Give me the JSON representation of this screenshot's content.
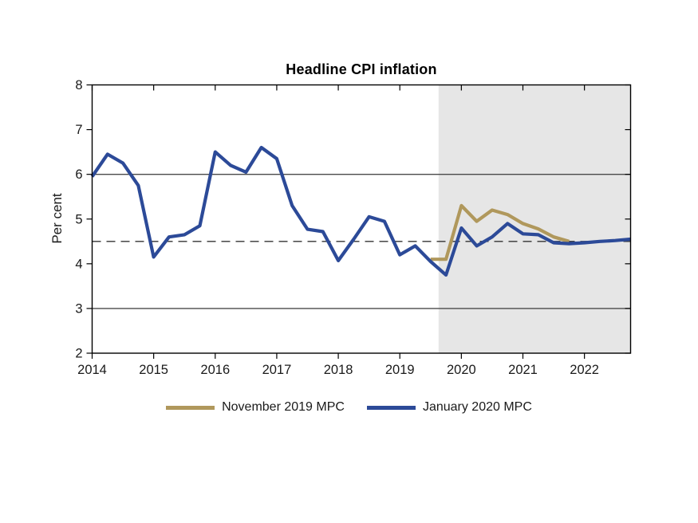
{
  "chart_data": {
    "type": "line",
    "title": "Headline CPI inflation",
    "ylabel": "Per cent",
    "xlabel": "",
    "xlim": [
      2014,
      2022.75
    ],
    "ylim": [
      2,
      8
    ],
    "x_ticks": [
      2014,
      2015,
      2016,
      2017,
      2018,
      2019,
      2020,
      2021,
      2022
    ],
    "y_ticks": [
      2,
      3,
      4,
      5,
      6,
      7,
      8
    ],
    "reference_lines": {
      "solid": [
        3,
        6
      ],
      "dashed": [
        4.5
      ]
    },
    "forecast_shading_start": 2019.63,
    "forecast_shading_color": "#e6e6e6",
    "grid": "off",
    "legend_position": "below",
    "series": [
      {
        "name": "November 2019 MPC",
        "color": "#b0985c",
        "x": [
          2019.5,
          2019.75,
          2020.0,
          2020.25,
          2020.5,
          2020.75,
          2021.0,
          2021.25,
          2021.5,
          2021.75
        ],
        "values": [
          4.1,
          4.1,
          5.3,
          4.95,
          5.2,
          5.1,
          4.9,
          4.78,
          4.6,
          4.5
        ]
      },
      {
        "name": "January 2020 MPC",
        "color": "#2c4a98",
        "x": [
          2014.0,
          2014.25,
          2014.5,
          2014.75,
          2015.0,
          2015.25,
          2015.5,
          2015.75,
          2016.0,
          2016.25,
          2016.5,
          2016.75,
          2017.0,
          2017.25,
          2017.5,
          2017.75,
          2018.0,
          2018.25,
          2018.5,
          2018.75,
          2019.0,
          2019.25,
          2019.5,
          2019.75,
          2020.0,
          2020.25,
          2020.5,
          2020.75,
          2021.0,
          2021.25,
          2021.5,
          2021.75,
          2022.0,
          2022.25,
          2022.5,
          2022.75
        ],
        "values": [
          5.95,
          6.45,
          6.25,
          5.75,
          4.15,
          4.6,
          4.65,
          4.85,
          6.5,
          6.2,
          6.05,
          6.6,
          6.35,
          5.3,
          4.77,
          4.72,
          4.07,
          4.55,
          5.05,
          4.95,
          4.2,
          4.4,
          4.05,
          3.75,
          4.8,
          4.4,
          4.6,
          4.9,
          4.67,
          4.65,
          4.47,
          4.45,
          4.47,
          4.5,
          4.52,
          4.55
        ]
      }
    ]
  }
}
